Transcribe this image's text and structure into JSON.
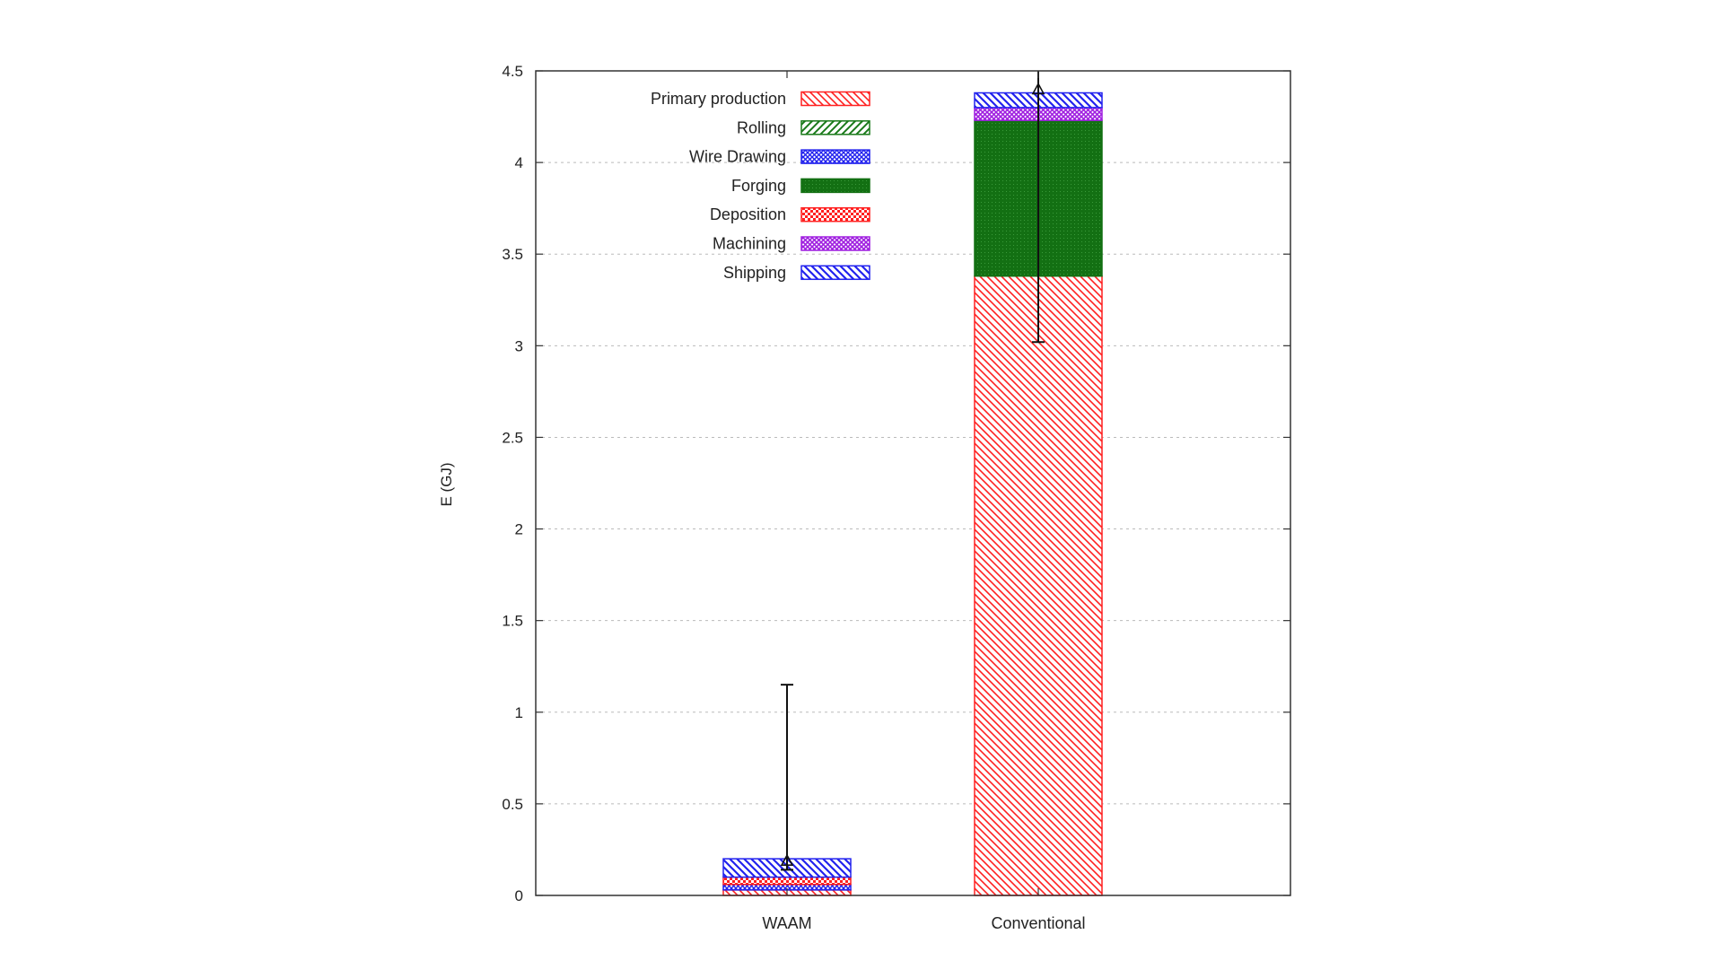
{
  "chart_data": {
    "type": "bar",
    "stacked": true,
    "title": "",
    "xlabel": "",
    "ylabel": "E (GJ)",
    "ylim": [
      0,
      4.5
    ],
    "yticks": [
      0,
      0.5,
      1,
      1.5,
      2,
      2.5,
      3,
      3.5,
      4,
      4.5
    ],
    "ytick_labels": [
      "0",
      "0.5",
      "1",
      "1.5",
      "2",
      "2.5",
      "3",
      "3.5",
      "4",
      "4.5"
    ],
    "grid": "horizontal-dashed",
    "legend_position": "top-left",
    "categories": [
      "WAAM",
      "Conventional"
    ],
    "series": [
      {
        "name": "Primary production",
        "color": "#ff2020",
        "pattern": "diag-left",
        "values": [
          0.03,
          3.38
        ]
      },
      {
        "name": "Rolling",
        "color": "#1a7a1a",
        "pattern": "diag-right",
        "values": [
          0.0,
          0.0
        ]
      },
      {
        "name": "Wire Drawing",
        "color": "#2222ee",
        "pattern": "crosshatch",
        "values": [
          0.03,
          0.0
        ]
      },
      {
        "name": "Forging",
        "color": "#137013",
        "pattern": "dense-dots",
        "values": [
          0.0,
          0.85
        ]
      },
      {
        "name": "Deposition",
        "color": "#ff2020",
        "pattern": "checker",
        "values": [
          0.04,
          0.0
        ]
      },
      {
        "name": "Machining",
        "color": "#a020e0",
        "pattern": "crosshatch",
        "values": [
          0.0,
          0.07
        ]
      },
      {
        "name": "Shipping",
        "color": "#2222ee",
        "pattern": "diag-left",
        "values": [
          0.1,
          0.08
        ]
      }
    ],
    "error_bars": [
      {
        "category": "WAAM",
        "center": 0.19,
        "low": 0.14,
        "high": 1.15
      },
      {
        "category": "Conventional",
        "center": 4.4,
        "low": 3.02,
        "high": 4.55
      }
    ]
  }
}
